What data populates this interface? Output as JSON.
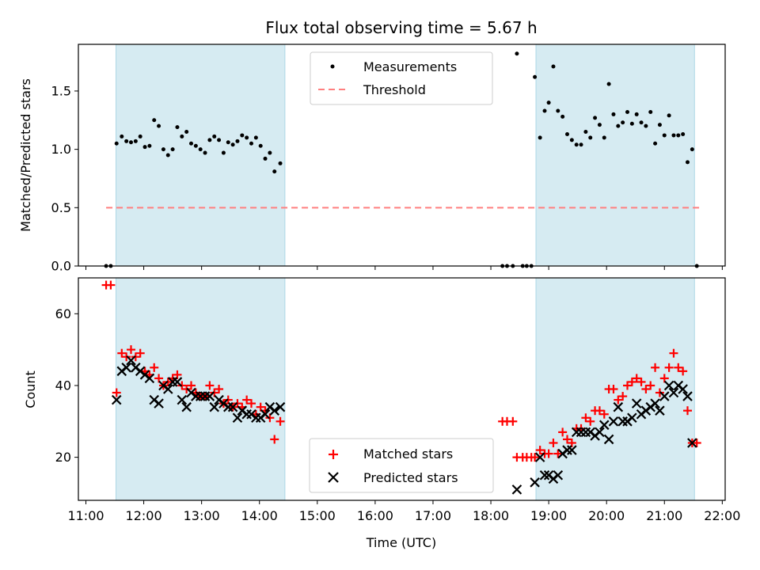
{
  "title": "Flux total observing time = 5.67 h",
  "xlabel": "Time (UTC)",
  "x_ticks": [
    "11:00",
    "12:00",
    "13:00",
    "14:00",
    "15:00",
    "16:00",
    "17:00",
    "18:00",
    "19:00",
    "20:00",
    "21:00",
    "22:00"
  ],
  "colors": {
    "band": "#add8e6",
    "measurement": "#000000",
    "threshold": "#ff7f7f",
    "matched": "#ff0000",
    "predicted": "#000000"
  },
  "chart_data": [
    {
      "type": "scatter",
      "ylabel": "Matched/Predicted stars",
      "xlim": [
        10.87,
        22.05
      ],
      "ylim": [
        0,
        1.9
      ],
      "y_ticks": [
        "0.0",
        "0.5",
        "1.0",
        "1.5"
      ],
      "shaded_ranges": [
        [
          11.52,
          14.44
        ],
        [
          18.78,
          21.52
        ]
      ],
      "legend_position": "upper-center",
      "legend": {
        "measurements": "Measurements",
        "threshold": "Threshold"
      },
      "threshold": {
        "value": 0.5,
        "x_range": [
          11.35,
          21.6
        ]
      },
      "measurements": [
        [
          11.35,
          0
        ],
        [
          11.43,
          0
        ],
        [
          11.53,
          1.05
        ],
        [
          11.62,
          1.11
        ],
        [
          11.7,
          1.07
        ],
        [
          11.78,
          1.06
        ],
        [
          11.86,
          1.07
        ],
        [
          11.94,
          1.11
        ],
        [
          12.02,
          1.02
        ],
        [
          12.1,
          1.03
        ],
        [
          12.18,
          1.25
        ],
        [
          12.26,
          1.2
        ],
        [
          12.34,
          1.0
        ],
        [
          12.42,
          0.95
        ],
        [
          12.5,
          1.0
        ],
        [
          12.58,
          1.19
        ],
        [
          12.66,
          1.11
        ],
        [
          12.74,
          1.15
        ],
        [
          12.82,
          1.05
        ],
        [
          12.9,
          1.03
        ],
        [
          12.98,
          1.0
        ],
        [
          13.06,
          0.97
        ],
        [
          13.14,
          1.08
        ],
        [
          13.22,
          1.11
        ],
        [
          13.3,
          1.08
        ],
        [
          13.38,
          0.97
        ],
        [
          13.46,
          1.06
        ],
        [
          13.54,
          1.04
        ],
        [
          13.62,
          1.07
        ],
        [
          13.7,
          1.12
        ],
        [
          13.78,
          1.1
        ],
        [
          13.86,
          1.05
        ],
        [
          13.94,
          1.1
        ],
        [
          14.02,
          1.03
        ],
        [
          14.1,
          0.92
        ],
        [
          14.18,
          0.97
        ],
        [
          14.26,
          0.81
        ],
        [
          14.36,
          0.88
        ],
        [
          18.2,
          0
        ],
        [
          18.28,
          0
        ],
        [
          18.38,
          0
        ],
        [
          18.45,
          1.82
        ],
        [
          18.55,
          0
        ],
        [
          18.62,
          0
        ],
        [
          18.7,
          0
        ],
        [
          18.76,
          1.62
        ],
        [
          18.85,
          1.1
        ],
        [
          18.93,
          1.33
        ],
        [
          19.0,
          1.4
        ],
        [
          19.08,
          1.71
        ],
        [
          19.16,
          1.33
        ],
        [
          19.24,
          1.28
        ],
        [
          19.32,
          1.13
        ],
        [
          19.4,
          1.08
        ],
        [
          19.48,
          1.04
        ],
        [
          19.56,
          1.04
        ],
        [
          19.64,
          1.15
        ],
        [
          19.72,
          1.1
        ],
        [
          19.8,
          1.27
        ],
        [
          19.88,
          1.21
        ],
        [
          19.96,
          1.1
        ],
        [
          20.04,
          1.56
        ],
        [
          20.12,
          1.3
        ],
        [
          20.2,
          1.2
        ],
        [
          20.28,
          1.23
        ],
        [
          20.36,
          1.32
        ],
        [
          20.44,
          1.22
        ],
        [
          20.52,
          1.3
        ],
        [
          20.6,
          1.23
        ],
        [
          20.68,
          1.2
        ],
        [
          20.76,
          1.32
        ],
        [
          20.84,
          1.05
        ],
        [
          20.92,
          1.21
        ],
        [
          21.0,
          1.12
        ],
        [
          21.08,
          1.29
        ],
        [
          21.16,
          1.12
        ],
        [
          21.24,
          1.12
        ],
        [
          21.32,
          1.13
        ],
        [
          21.4,
          0.89
        ],
        [
          21.48,
          1.0
        ],
        [
          21.56,
          0
        ]
      ]
    },
    {
      "type": "scatter",
      "ylabel": "Count",
      "xlim": [
        10.87,
        22.05
      ],
      "ylim": [
        8,
        70
      ],
      "y_ticks": [
        "20",
        "40",
        "60"
      ],
      "shaded_ranges": [
        [
          11.52,
          14.44
        ],
        [
          18.78,
          21.52
        ]
      ],
      "legend_position": "lower-center",
      "series": [
        {
          "name": "Matched stars",
          "marker": "plus",
          "points": [
            [
              11.35,
              68
            ],
            [
              11.43,
              68
            ],
            [
              11.53,
              38
            ],
            [
              11.62,
              49
            ],
            [
              11.7,
              48
            ],
            [
              11.78,
              50
            ],
            [
              11.86,
              48
            ],
            [
              11.94,
              49
            ],
            [
              12.02,
              44
            ],
            [
              12.1,
              43
            ],
            [
              12.18,
              45
            ],
            [
              12.26,
              42
            ],
            [
              12.34,
              40
            ],
            [
              12.42,
              41
            ],
            [
              12.5,
              42
            ],
            [
              12.58,
              43
            ],
            [
              12.66,
              40
            ],
            [
              12.74,
              39
            ],
            [
              12.82,
              40
            ],
            [
              12.9,
              38
            ],
            [
              12.98,
              37
            ],
            [
              13.06,
              37
            ],
            [
              13.14,
              40
            ],
            [
              13.22,
              38
            ],
            [
              13.3,
              39
            ],
            [
              13.38,
              35
            ],
            [
              13.46,
              36
            ],
            [
              13.54,
              34
            ],
            [
              13.62,
              35
            ],
            [
              13.7,
              34
            ],
            [
              13.78,
              36
            ],
            [
              13.86,
              35
            ],
            [
              13.94,
              32
            ],
            [
              14.02,
              34
            ],
            [
              14.1,
              33
            ],
            [
              14.18,
              31
            ],
            [
              14.26,
              25
            ],
            [
              14.36,
              30
            ],
            [
              18.2,
              30
            ],
            [
              18.28,
              30
            ],
            [
              18.38,
              30
            ],
            [
              18.45,
              20
            ],
            [
              18.55,
              20
            ],
            [
              18.62,
              20
            ],
            [
              18.7,
              20
            ],
            [
              18.76,
              20
            ],
            [
              18.85,
              22
            ],
            [
              18.93,
              21
            ],
            [
              19.0,
              21
            ],
            [
              19.08,
              24
            ],
            [
              19.16,
              21
            ],
            [
              19.24,
              27
            ],
            [
              19.32,
              25
            ],
            [
              19.4,
              24
            ],
            [
              19.48,
              28
            ],
            [
              19.56,
              28
            ],
            [
              19.64,
              31
            ],
            [
              19.72,
              30
            ],
            [
              19.8,
              33
            ],
            [
              19.88,
              33
            ],
            [
              19.96,
              32
            ],
            [
              20.04,
              39
            ],
            [
              20.12,
              39
            ],
            [
              20.2,
              36
            ],
            [
              20.28,
              37
            ],
            [
              20.36,
              40
            ],
            [
              20.44,
              41
            ],
            [
              20.52,
              42
            ],
            [
              20.6,
              41
            ],
            [
              20.68,
              39
            ],
            [
              20.76,
              40
            ],
            [
              20.84,
              45
            ],
            [
              20.92,
              38
            ],
            [
              21.0,
              42
            ],
            [
              21.08,
              45
            ],
            [
              21.16,
              49
            ],
            [
              21.24,
              45
            ],
            [
              21.32,
              44
            ],
            [
              21.4,
              33
            ],
            [
              21.48,
              24
            ],
            [
              21.56,
              24
            ]
          ]
        },
        {
          "name": "Predicted stars",
          "marker": "x",
          "points": [
            [
              11.53,
              36
            ],
            [
              11.62,
              44
            ],
            [
              11.7,
              45
            ],
            [
              11.78,
              47
            ],
            [
              11.86,
              45
            ],
            [
              11.94,
              44
            ],
            [
              12.02,
              43
            ],
            [
              12.1,
              42
            ],
            [
              12.18,
              36
            ],
            [
              12.26,
              35
            ],
            [
              12.34,
              40
            ],
            [
              12.42,
              39
            ],
            [
              12.5,
              41
            ],
            [
              12.58,
              41
            ],
            [
              12.66,
              36
            ],
            [
              12.74,
              34
            ],
            [
              12.82,
              38
            ],
            [
              12.9,
              37
            ],
            [
              12.98,
              37
            ],
            [
              13.06,
              37
            ],
            [
              13.14,
              37
            ],
            [
              13.22,
              34
            ],
            [
              13.3,
              36
            ],
            [
              13.38,
              35
            ],
            [
              13.46,
              34
            ],
            [
              13.54,
              34
            ],
            [
              13.62,
              31
            ],
            [
              13.7,
              33
            ],
            [
              13.78,
              32
            ],
            [
              13.86,
              32
            ],
            [
              13.94,
              31
            ],
            [
              14.02,
              31
            ],
            [
              14.1,
              32
            ],
            [
              14.18,
              34
            ],
            [
              14.26,
              33
            ],
            [
              14.36,
              34
            ],
            [
              18.45,
              11
            ],
            [
              18.76,
              13
            ],
            [
              18.85,
              20
            ],
            [
              18.93,
              15
            ],
            [
              19.0,
              15
            ],
            [
              19.08,
              14
            ],
            [
              19.16,
              15
            ],
            [
              19.24,
              21
            ],
            [
              19.32,
              22
            ],
            [
              19.4,
              22
            ],
            [
              19.48,
              27
            ],
            [
              19.56,
              27
            ],
            [
              19.64,
              27
            ],
            [
              19.72,
              27
            ],
            [
              19.8,
              26
            ],
            [
              19.88,
              27
            ],
            [
              19.96,
              29
            ],
            [
              20.04,
              25
            ],
            [
              20.12,
              30
            ],
            [
              20.2,
              34
            ],
            [
              20.28,
              30
            ],
            [
              20.36,
              30
            ],
            [
              20.44,
              31
            ],
            [
              20.52,
              35
            ],
            [
              20.6,
              32
            ],
            [
              20.68,
              33
            ],
            [
              20.76,
              34
            ],
            [
              20.84,
              35
            ],
            [
              20.92,
              33
            ],
            [
              21.0,
              37
            ],
            [
              21.08,
              40
            ],
            [
              21.16,
              38
            ],
            [
              21.24,
              40
            ],
            [
              21.32,
              39
            ],
            [
              21.4,
              37
            ],
            [
              21.48,
              24
            ]
          ]
        }
      ]
    }
  ]
}
